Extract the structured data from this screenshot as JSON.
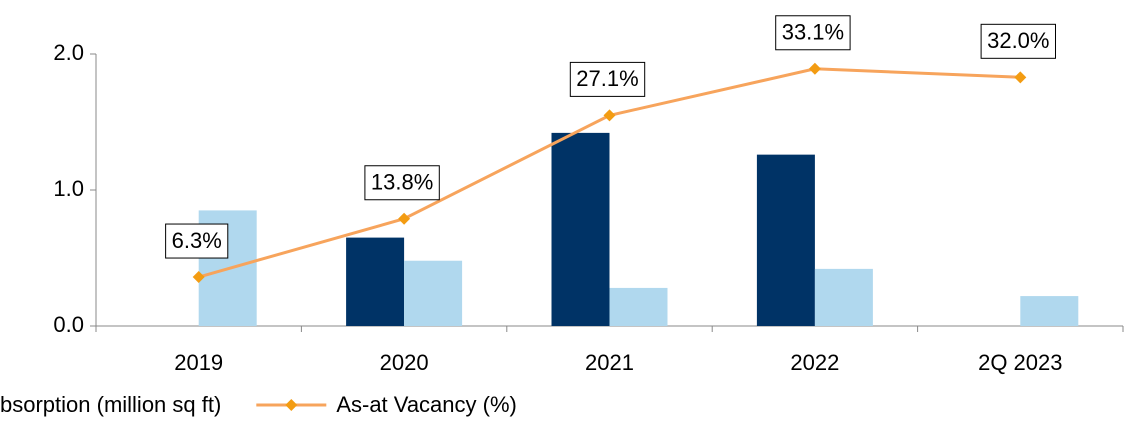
{
  "chart_data": {
    "type": "bar",
    "categories": [
      "2019",
      "2020",
      "2021",
      "2022",
      "2Q 2023"
    ],
    "series": [
      {
        "color": "#003366",
        "values": [
          null,
          0.65,
          1.42,
          1.26,
          null
        ]
      },
      {
        "name": "bsorption (million sq ft)",
        "color": "#b0d8ee",
        "values": [
          0.85,
          0.48,
          0.28,
          0.42,
          0.22
        ]
      },
      {
        "name": "As-at Vacancy (%)",
        "type": "line",
        "axis": "y2",
        "color": "#f7a45c",
        "marker_color": "#f39c12",
        "values": [
          6.3,
          13.8,
          27.1,
          33.1,
          32.0
        ],
        "value_labels": [
          "6.3%",
          "13.8%",
          "27.1%",
          "33.1%",
          "32.0%"
        ]
      }
    ],
    "ylim": [
      0,
      2.0
    ],
    "yticks": [
      {
        "value": 0,
        "label": "0.0"
      },
      {
        "value": 1,
        "label": "1.0"
      },
      {
        "value": 2,
        "label": "2.0"
      }
    ],
    "y2lim": [
      0,
      35
    ],
    "legend": "bottom"
  }
}
